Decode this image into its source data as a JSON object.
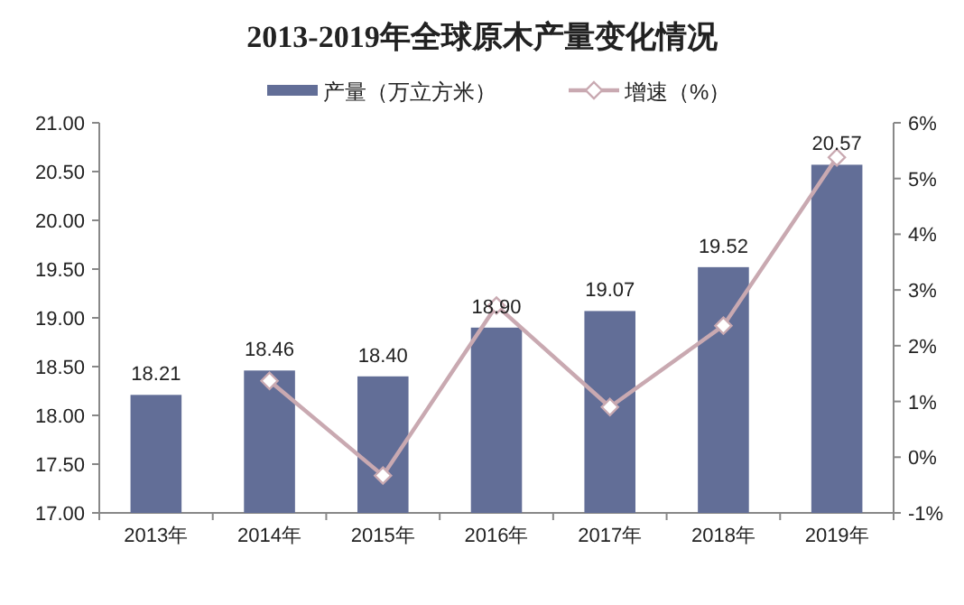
{
  "chart_data": {
    "type": "bar",
    "title": "2013-2019年全球原木产量变化情况",
    "categories": [
      "2013年",
      "2014年",
      "2015年",
      "2016年",
      "2017年",
      "2018年",
      "2019年"
    ],
    "series": [
      {
        "name": "产量（万立方米）",
        "color": "#626e97",
        "values": [
          18.21,
          18.46,
          18.4,
          18.9,
          19.07,
          19.52,
          20.57
        ],
        "value_labels": [
          "18.21",
          "18.46",
          "18.40",
          "18.90",
          "19.07",
          "19.52",
          "20.57"
        ]
      },
      {
        "name": "增速（%）",
        "type": "line",
        "axis": "y2",
        "color": "#c9a9b1",
        "marker": "diamond",
        "values": [
          null,
          1.37,
          -0.33,
          2.72,
          0.9,
          2.36,
          5.38
        ]
      }
    ],
    "ylim": [
      17,
      21
    ],
    "yticks": [
      {
        "value": 17,
        "label": "17.00"
      },
      {
        "value": 17.5,
        "label": "17.50"
      },
      {
        "value": 18,
        "label": "18.00"
      },
      {
        "value": 18.5,
        "label": "18.50"
      },
      {
        "value": 19,
        "label": "19.00"
      },
      {
        "value": 19.5,
        "label": "19.50"
      },
      {
        "value": 20,
        "label": "20.00"
      },
      {
        "value": 20.5,
        "label": "20.50"
      },
      {
        "value": 21,
        "label": "21.00"
      }
    ],
    "y2lim": [
      -1,
      6
    ],
    "y2ticks": [
      {
        "value": -1,
        "label": "-1%"
      },
      {
        "value": 0,
        "label": "0%"
      },
      {
        "value": 1,
        "label": "1%"
      },
      {
        "value": 2,
        "label": "2%"
      },
      {
        "value": 3,
        "label": "3%"
      },
      {
        "value": 4,
        "label": "4%"
      },
      {
        "value": 5,
        "label": "5%"
      },
      {
        "value": 6,
        "label": "6%"
      }
    ],
    "legend": "top",
    "grid": false
  }
}
